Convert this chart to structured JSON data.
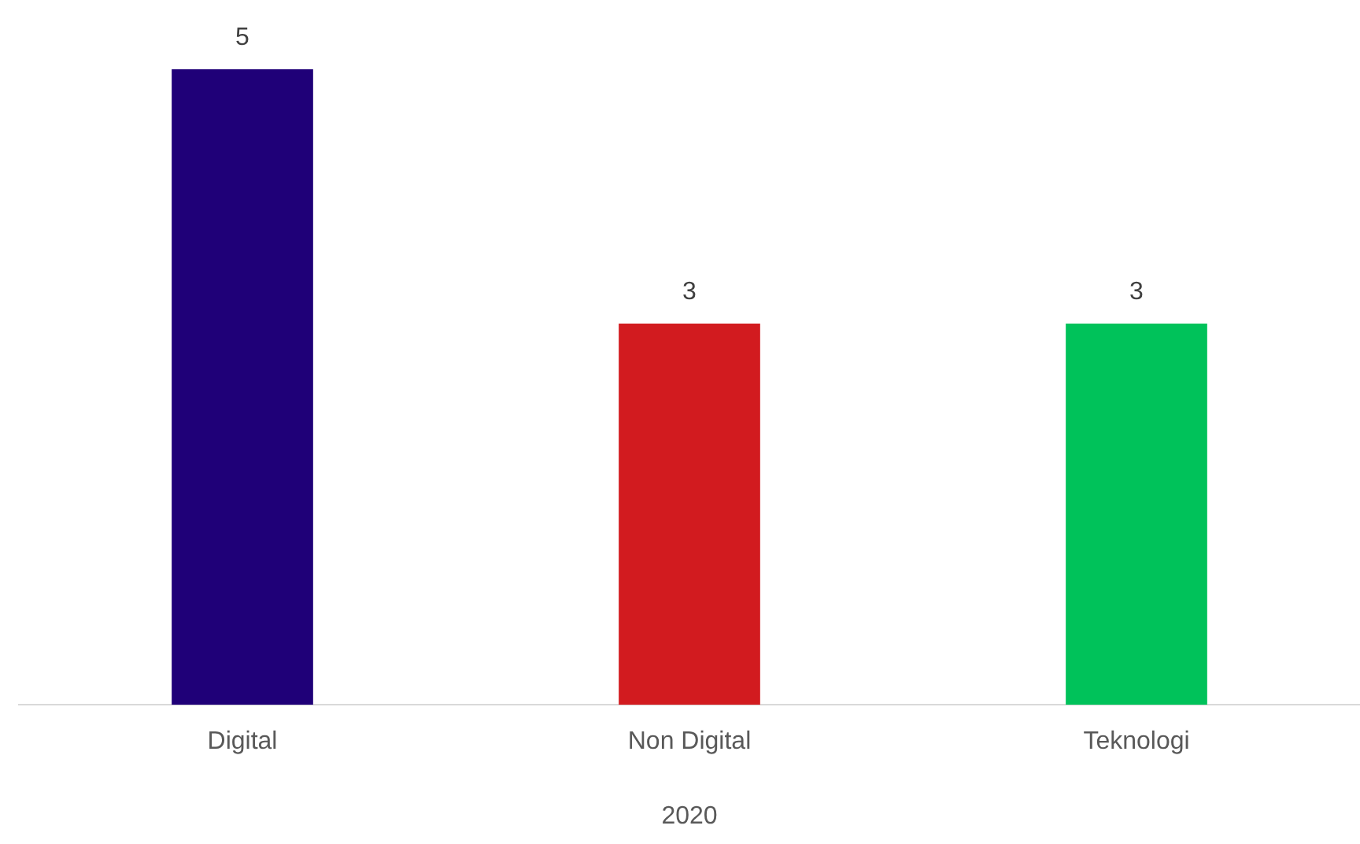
{
  "chart_data": {
    "type": "bar",
    "xlabel": "2020",
    "categories": [
      "Digital",
      "Non Digital",
      "Teknologi"
    ],
    "values": [
      5,
      3,
      3
    ],
    "colors": [
      "#1f0078",
      "#d21b1f",
      "#00c25a"
    ],
    "data_labels": true,
    "grid": false,
    "legend": false
  }
}
